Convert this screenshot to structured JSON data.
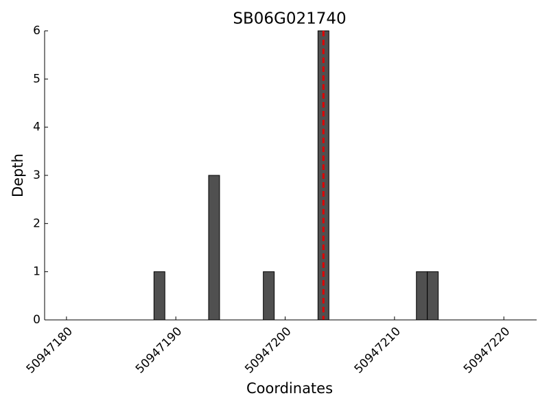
{
  "chart_data": {
    "type": "bar",
    "title": "SB06G021740",
    "xlabel": "Coordinates",
    "ylabel": "Depth",
    "x": [
      50947188,
      50947193,
      50947198,
      50947203,
      50947212,
      50947213
    ],
    "values": [
      1,
      3,
      1,
      6,
      1,
      1
    ],
    "bar_width": 1,
    "color": "#505050",
    "xlim": [
      50947178,
      50947223
    ],
    "xticks": [
      50947180,
      50947190,
      50947200,
      50947210,
      50947220
    ],
    "ylim": [
      0,
      6
    ],
    "yticks": [
      0,
      1,
      2,
      3,
      4,
      5,
      6
    ],
    "marker_x": 50947203.5,
    "marker_color": "#e00000"
  }
}
